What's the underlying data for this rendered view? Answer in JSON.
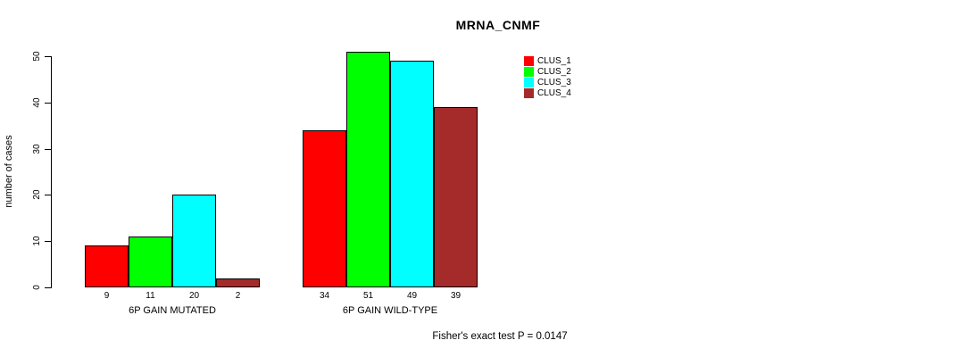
{
  "title": "MRNA_CNMF",
  "footer": "Fisher's exact test P = 0.0147",
  "chart_data": {
    "type": "bar",
    "title": "MRNA_CNMF",
    "xlabel": "",
    "ylabel": "number of cases",
    "categories": [
      "6P GAIN MUTATED",
      "6P GAIN WILD-TYPE"
    ],
    "series": [
      {
        "name": "CLUS_1",
        "color": "#ff0000",
        "values": [
          9,
          34
        ]
      },
      {
        "name": "CLUS_2",
        "color": "#00ff00",
        "values": [
          11,
          51
        ]
      },
      {
        "name": "CLUS_3",
        "color": "#00ffff",
        "values": [
          20,
          49
        ]
      },
      {
        "name": "CLUS_4",
        "color": "#a52a2a",
        "values": [
          2,
          39
        ]
      }
    ],
    "bar_value_labels": [
      [
        9,
        11,
        20,
        2
      ],
      [
        34,
        51,
        49,
        39
      ]
    ],
    "yticks": [
      0,
      10,
      20,
      30,
      40,
      50
    ],
    "ylim": [
      0,
      50
    ],
    "grid": false,
    "legend_position": "right",
    "legend_entries": [
      "CLUS_1",
      "CLUS_2",
      "CLUS_3",
      "CLUS_4"
    ],
    "annotation": "Fisher's exact test P = 0.0147",
    "bar_border_color": "#000000",
    "background_color": "#ffffff"
  }
}
